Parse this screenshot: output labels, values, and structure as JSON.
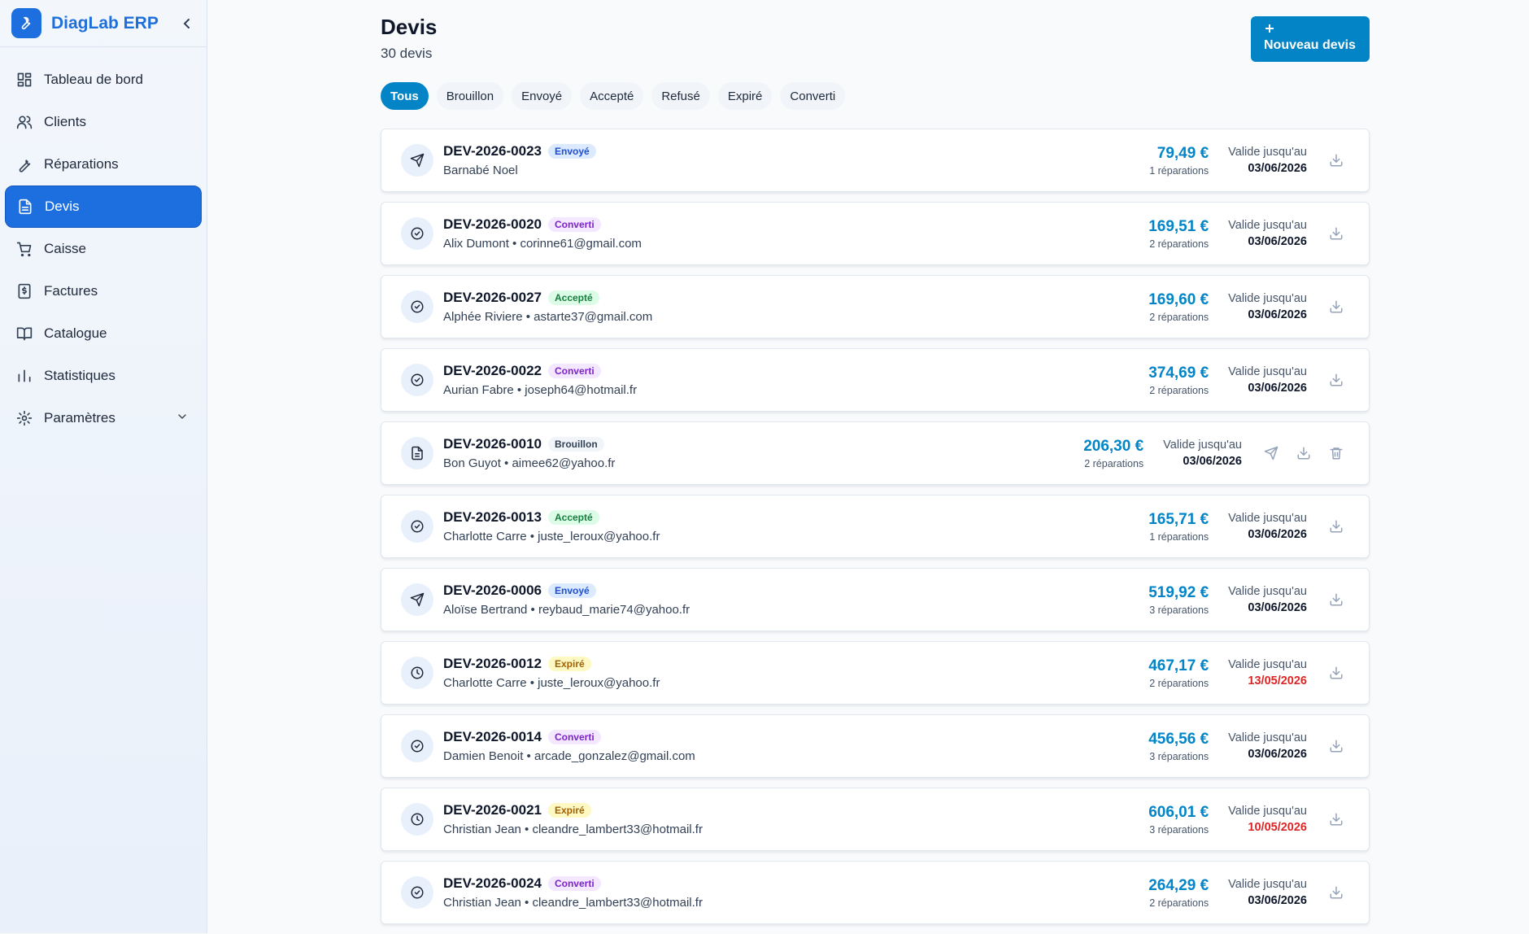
{
  "sidebar": {
    "brand": "DiagLab ERP",
    "nav": [
      {
        "label": "Tableau de bord",
        "active": false
      },
      {
        "label": "Clients",
        "active": false
      },
      {
        "label": "Réparations",
        "active": false
      },
      {
        "label": "Devis",
        "active": true
      },
      {
        "label": "Caisse",
        "active": false
      },
      {
        "label": "Factures",
        "active": false
      },
      {
        "label": "Catalogue",
        "active": false
      },
      {
        "label": "Statistiques",
        "active": false
      },
      {
        "label": "Paramètres",
        "active": false
      }
    ]
  },
  "header": {
    "title": "Devis",
    "count": "30 devis",
    "new_button": "Nouveau devis"
  },
  "tabs": [
    {
      "label": "Tous",
      "active": true
    },
    {
      "label": "Brouillon",
      "active": false
    },
    {
      "label": "Envoyé",
      "active": false
    },
    {
      "label": "Accepté",
      "active": false
    },
    {
      "label": "Refusé",
      "active": false
    },
    {
      "label": "Expiré",
      "active": false
    },
    {
      "label": "Converti",
      "active": false
    }
  ],
  "labels": {
    "valid_until": "Valide jusqu'au"
  },
  "quotes": [
    {
      "number": "DEV-2026-0023",
      "status": "Envoyé",
      "tone": "blue",
      "contact": "Barnabé Noel",
      "amount": "79,49 €",
      "repairs": "1 réparations",
      "valid_date": "03/06/2026"
    },
    {
      "number": "DEV-2026-0020",
      "status": "Converti",
      "tone": "purple",
      "contact": "Alix Dumont • corinne61@gmail.com",
      "amount": "169,51 €",
      "repairs": "2 réparations",
      "valid_date": "03/06/2026"
    },
    {
      "number": "DEV-2026-0027",
      "status": "Accepté",
      "tone": "green",
      "contact": "Alphée Riviere • astarte37@gmail.com",
      "amount": "169,60 €",
      "repairs": "2 réparations",
      "valid_date": "03/06/2026"
    },
    {
      "number": "DEV-2026-0022",
      "status": "Converti",
      "tone": "purple",
      "contact": "Aurian Fabre • joseph64@hotmail.fr",
      "amount": "374,69 €",
      "repairs": "2 réparations",
      "valid_date": "03/06/2026"
    },
    {
      "number": "DEV-2026-0010",
      "status": "Brouillon",
      "tone": "gray",
      "contact": "Bon Guyot • aimee62@yahoo.fr",
      "amount": "206,30 €",
      "repairs": "2 réparations",
      "valid_date": "03/06/2026"
    },
    {
      "number": "DEV-2026-0013",
      "status": "Accepté",
      "tone": "green",
      "contact": "Charlotte Carre • juste_leroux@yahoo.fr",
      "amount": "165,71 €",
      "repairs": "1 réparations",
      "valid_date": "03/06/2026"
    },
    {
      "number": "DEV-2026-0006",
      "status": "Envoyé",
      "tone": "blue",
      "contact": "Aloïse Bertrand • reybaud_marie74@yahoo.fr",
      "amount": "519,92 €",
      "repairs": "3 réparations",
      "valid_date": "03/06/2026"
    },
    {
      "number": "DEV-2026-0012",
      "status": "Expiré",
      "tone": "yellow",
      "contact": "Charlotte Carre • juste_leroux@yahoo.fr",
      "amount": "467,17 €",
      "repairs": "2 réparations",
      "valid_date": "13/05/2026"
    },
    {
      "number": "DEV-2026-0014",
      "status": "Converti",
      "tone": "purple",
      "contact": "Damien Benoit • arcade_gonzalez@gmail.com",
      "amount": "456,56 €",
      "repairs": "3 réparations",
      "valid_date": "03/06/2026"
    },
    {
      "number": "DEV-2026-0021",
      "status": "Expiré",
      "tone": "yellow",
      "contact": "Christian Jean • cleandre_lambert33@hotmail.fr",
      "amount": "606,01 €",
      "repairs": "3 réparations",
      "valid_date": "10/05/2026"
    },
    {
      "number": "DEV-2026-0024",
      "status": "Converti",
      "tone": "purple",
      "contact": "Christian Jean • cleandre_lambert33@hotmail.fr",
      "amount": "264,29 €",
      "repairs": "2 réparations",
      "valid_date": "03/06/2026"
    }
  ]
}
